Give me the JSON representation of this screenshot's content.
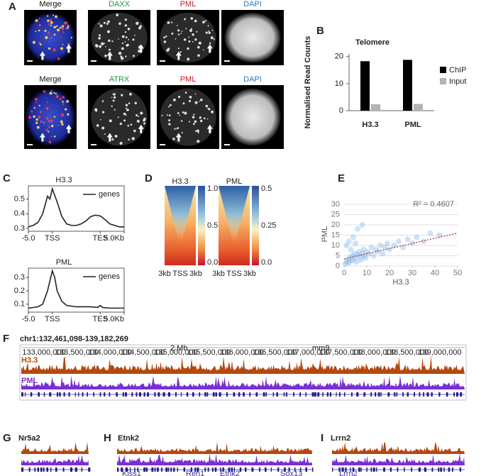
{
  "panel_labels": [
    "A",
    "B",
    "C",
    "D",
    "E",
    "F",
    "G",
    "H",
    "I"
  ],
  "microscopy": {
    "row1": [
      "Merge",
      "DAXX",
      "PML",
      "DAPI"
    ],
    "row2": [
      "Merge",
      "ATRX",
      "PML",
      "DAPI"
    ]
  },
  "chart_data": [
    {
      "type": "bar",
      "title": "Telomere",
      "y_label": "Normalised Read Counts",
      "categories": [
        "H3.3",
        "PML"
      ],
      "series": [
        {
          "name": "ChIP",
          "color": "#000000",
          "values": [
            18.3,
            18.8
          ]
        },
        {
          "name": "Input",
          "color": "#b3b3b3",
          "values": [
            2.4,
            2.5
          ]
        }
      ],
      "ylim": [
        0,
        21
      ],
      "yticks": [
        0,
        10,
        20
      ],
      "legend": "right"
    },
    {
      "type": "line",
      "title": "H3.3",
      "x": [
        0,
        2,
        4,
        6,
        8,
        9,
        10,
        12,
        14,
        16,
        18,
        20,
        22,
        24,
        26,
        28,
        30,
        32,
        34,
        36,
        38,
        40
      ],
      "series": [
        {
          "name": "genes",
          "color": "#222222",
          "values": [
            0.31,
            0.32,
            0.34,
            0.4,
            0.52,
            0.5,
            0.57,
            0.48,
            0.38,
            0.33,
            0.32,
            0.32,
            0.33,
            0.35,
            0.38,
            0.39,
            0.385,
            0.36,
            0.33,
            0.32,
            0.31,
            0.31
          ]
        }
      ],
      "xlim": [
        0,
        40
      ],
      "xticks": [
        {
          "value": 0,
          "label": "-5.0"
        },
        {
          "value": 10,
          "label": "TSS"
        },
        {
          "value": 30,
          "label": "TES"
        },
        {
          "value": 40,
          "label": "5.0Kb"
        }
      ],
      "ylim": [
        0.28,
        0.59
      ],
      "yticks": [
        0.3,
        0.4,
        0.5
      ],
      "legend": "upper right"
    },
    {
      "type": "line",
      "title": "PML",
      "x": [
        0,
        4,
        6,
        8,
        10,
        11,
        12,
        14,
        16,
        20,
        26,
        29,
        30,
        31,
        34,
        40
      ],
      "series": [
        {
          "name": "genes",
          "color": "#222222",
          "values": [
            0.07,
            0.08,
            0.1,
            0.2,
            0.35,
            0.3,
            0.2,
            0.12,
            0.09,
            0.08,
            0.08,
            0.075,
            0.09,
            0.075,
            0.07,
            0.07
          ]
        }
      ],
      "xlim": [
        0,
        40
      ],
      "xticks": [
        {
          "value": 0,
          "label": "-5.0"
        },
        {
          "value": 10,
          "label": "TSS"
        },
        {
          "value": 30,
          "label": "TES"
        },
        {
          "value": 40,
          "label": "5.0Kb"
        }
      ],
      "ylim": [
        0.04,
        0.37
      ],
      "yticks": [
        0.1,
        0.2,
        0.3
      ],
      "legend": "upper right"
    },
    {
      "type": "scatter",
      "x_label": "H3.3",
      "y_label": "PML",
      "annotation": "R² = 0.4607",
      "color": "#7fb8ea",
      "x": [
        0.5,
        1,
        1.5,
        2,
        2.5,
        3,
        3.5,
        4,
        4.5,
        5,
        5.5,
        6,
        6.5,
        7,
        7.5,
        8,
        8.5,
        9,
        9.5,
        10,
        11,
        12,
        13,
        14,
        15,
        16,
        17,
        18,
        19,
        20,
        22,
        24,
        26,
        28,
        30,
        32,
        35,
        38,
        42,
        1,
        2,
        3,
        4,
        5,
        6,
        8
      ],
      "values": [
        1,
        2,
        3,
        1.5,
        4,
        2.5,
        5,
        3,
        6,
        4,
        2,
        5.5,
        7,
        4.5,
        3,
        6,
        8,
        5,
        4,
        7,
        6,
        9,
        5,
        8,
        7,
        10,
        6,
        9,
        11,
        8,
        10,
        12,
        9,
        13,
        11,
        14,
        12,
        16,
        15,
        10,
        12,
        8,
        14,
        11,
        18,
        20
      ],
      "trend": {
        "x": [
          0,
          50
        ],
        "values": [
          3.5,
          16
        ],
        "color": "#c0303a"
      },
      "xlim": [
        0,
        50
      ],
      "xticks": [
        0,
        10,
        20,
        30,
        40,
        50
      ],
      "ylim": [
        0,
        30
      ],
      "yticks": [
        0,
        5,
        10,
        15,
        20,
        25,
        30
      ],
      "grid": true
    }
  ],
  "heatmaps": [
    {
      "title": "H3.3",
      "colorbar_ticks": [
        "1.0",
        "0.5",
        "0.0"
      ],
      "x_labels": [
        "3kb",
        "TSS",
        "3kb"
      ]
    },
    {
      "title": "PML",
      "colorbar_ticks": [
        "0.5",
        "0.25",
        "0.0"
      ],
      "x_labels": [
        "3kb",
        "TSS",
        "3kb"
      ]
    }
  ],
  "browser": {
    "locus": "chr1:132,461,098-139,182,269",
    "scale": "2 Mb",
    "assembly": "mm9",
    "coords": [
      "133,000,000",
      "133,500,000",
      "134,000,000",
      "134,500,000",
      "135,000,000",
      "135,500,000",
      "136,000,000",
      "136,500,000",
      "137,000,000",
      "137,500,000",
      "138,000,000",
      "138,500,000",
      "139,000,000"
    ],
    "tracks": [
      "H3.3",
      "PML"
    ]
  },
  "zooms": [
    {
      "gene": "Nr5a2",
      "genes": []
    },
    {
      "gene": "Etnk2",
      "genes": [
        "Kiss1",
        "Ren1",
        "Etnk2",
        "Sox13"
      ]
    },
    {
      "gene": "Lrrn2",
      "genes": [
        "Lrrn2"
      ]
    }
  ]
}
